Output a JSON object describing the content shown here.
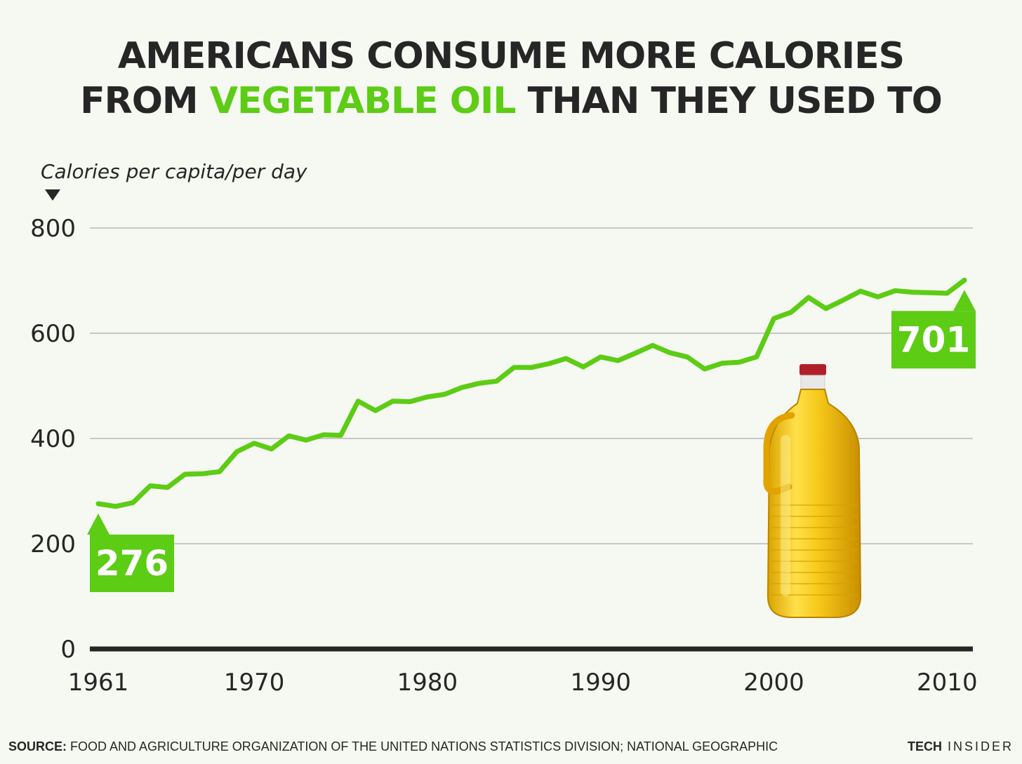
{
  "title": {
    "part1": "AMERICANS CONSUME MORE CALORIES",
    "part2": "FROM",
    "highlight": "VEGETABLE OIL",
    "part3": "THAN THEY USED TO"
  },
  "footer": {
    "source_label": "SOURCE:",
    "source_text": "FOOD AND AGRICULTURE ORGANIZATION OF THE UNITED NATIONS STATISTICS DIVISION; NATIONAL GEOGRAPHIC",
    "brand_bold": "TECH",
    "brand_rest": "INSIDER"
  },
  "colors": {
    "accent": "#5ccc14",
    "text": "#262626",
    "grid": "#c8c8c8",
    "background": "#f6f8f2"
  },
  "chart_data": {
    "type": "line",
    "ylabel": "Calories per capita/per day",
    "xlabel": "",
    "xlim": [
      1961,
      2011
    ],
    "ylim": [
      0,
      800
    ],
    "yticks": [
      0,
      200,
      400,
      600,
      800
    ],
    "xticks": [
      1961,
      1970,
      1980,
      1990,
      2000,
      2010
    ],
    "grid": true,
    "series": [
      {
        "x": [
          1961,
          1962,
          1963,
          1964,
          1965,
          1966,
          1967,
          1968,
          1969,
          1970,
          1971,
          1972,
          1973,
          1974,
          1975,
          1976,
          1977,
          1978,
          1979,
          1980,
          1981,
          1982,
          1983,
          1984,
          1985,
          1986,
          1987,
          1988,
          1989,
          1990,
          1991,
          1992,
          1993,
          1994,
          1995,
          1996,
          1997,
          1998,
          1999,
          2000,
          2001,
          2002,
          2003,
          2004,
          2005,
          2006,
          2007,
          2008,
          2009,
          2010,
          2011
        ],
        "values": [
          276,
          271,
          278,
          310,
          307,
          332,
          333,
          337,
          375,
          391,
          380,
          405,
          397,
          407,
          406,
          471,
          453,
          471,
          470,
          479,
          484,
          497,
          505,
          509,
          535,
          535,
          542,
          552,
          536,
          555,
          548,
          562,
          577,
          563,
          555,
          532,
          543,
          545,
          555,
          628,
          640,
          668,
          647,
          663,
          680,
          669,
          681,
          678,
          677,
          676,
          701
        ]
      }
    ],
    "annotations": [
      {
        "x": 1961,
        "value": 276,
        "label": "276"
      },
      {
        "x": 2011,
        "value": 701,
        "label": "701"
      }
    ]
  }
}
